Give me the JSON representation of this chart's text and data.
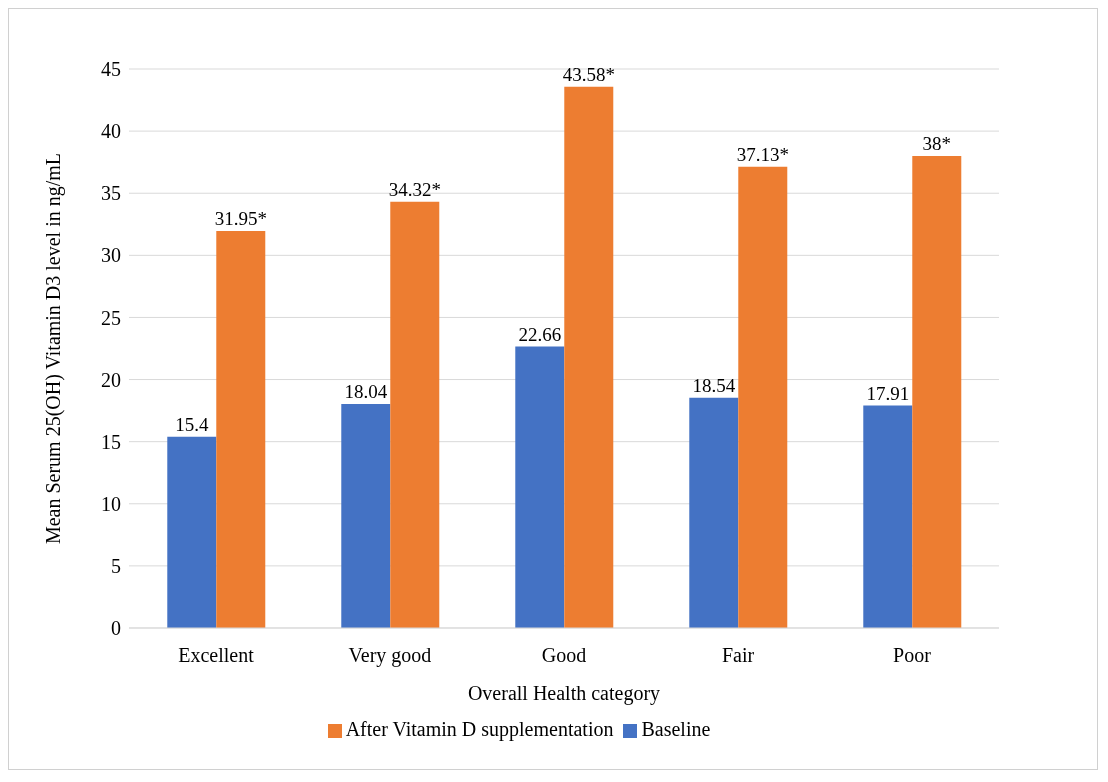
{
  "chart_data": {
    "type": "bar",
    "xlabel": "Overall Health category",
    "ylabel": "Mean Serum 25(OH) Vitamin D3 level in ng/mL",
    "categories": [
      "Excellent",
      "Very good",
      "Good",
      "Fair",
      "Poor"
    ],
    "series": [
      {
        "name": "Baseline",
        "color": "#4472c4",
        "values": [
          15.4,
          18.04,
          22.66,
          18.54,
          17.91
        ],
        "value_labels": [
          "15.4",
          "18.04",
          "22.66",
          "18.54",
          "17.91"
        ]
      },
      {
        "name": "After Vitamin D supplementation",
        "color": "#ed7d31",
        "values": [
          31.95,
          34.32,
          43.58,
          37.13,
          38
        ],
        "value_labels": [
          "31.95*",
          "34.32*",
          "43.58*",
          "37.13*",
          "38*"
        ]
      }
    ],
    "ylim": [
      0,
      45
    ],
    "yticks": [
      0,
      5,
      10,
      15,
      20,
      25,
      30,
      35,
      40,
      45
    ],
    "grid": "y",
    "legend": "bottom"
  }
}
